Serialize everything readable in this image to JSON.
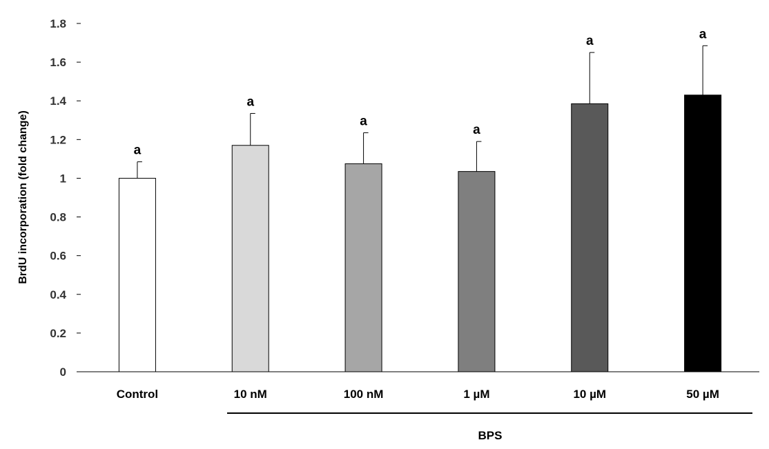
{
  "chart_data": {
    "type": "bar",
    "ylabel": "BrdU incorporation (fold change)",
    "group_label": "BPS",
    "ylim": [
      0,
      1.8
    ],
    "yticks": [
      "0",
      "0.2",
      "0.4",
      "0.6",
      "0.8",
      "1",
      "1.2",
      "1.4",
      "1.6",
      "1.8"
    ],
    "ytick_values": [
      0,
      0.2,
      0.4,
      0.6,
      0.8,
      1.0,
      1.2,
      1.4,
      1.6,
      1.8
    ],
    "categories": [
      "Control",
      "10 nM",
      "100 nM",
      "1 µM",
      "10 µM",
      "50 µM"
    ],
    "values": [
      1.0,
      1.17,
      1.075,
      1.035,
      1.385,
      1.43
    ],
    "errors": [
      0.085,
      0.165,
      0.16,
      0.155,
      0.265,
      0.255
    ],
    "significance": [
      "a",
      "a",
      "a",
      "a",
      "a",
      "a"
    ],
    "colors": [
      "#ffffff",
      "#d9d9d9",
      "#a6a6a6",
      "#7f7f7f",
      "#595959",
      "#000000"
    ],
    "grid": false,
    "legend": "none"
  }
}
